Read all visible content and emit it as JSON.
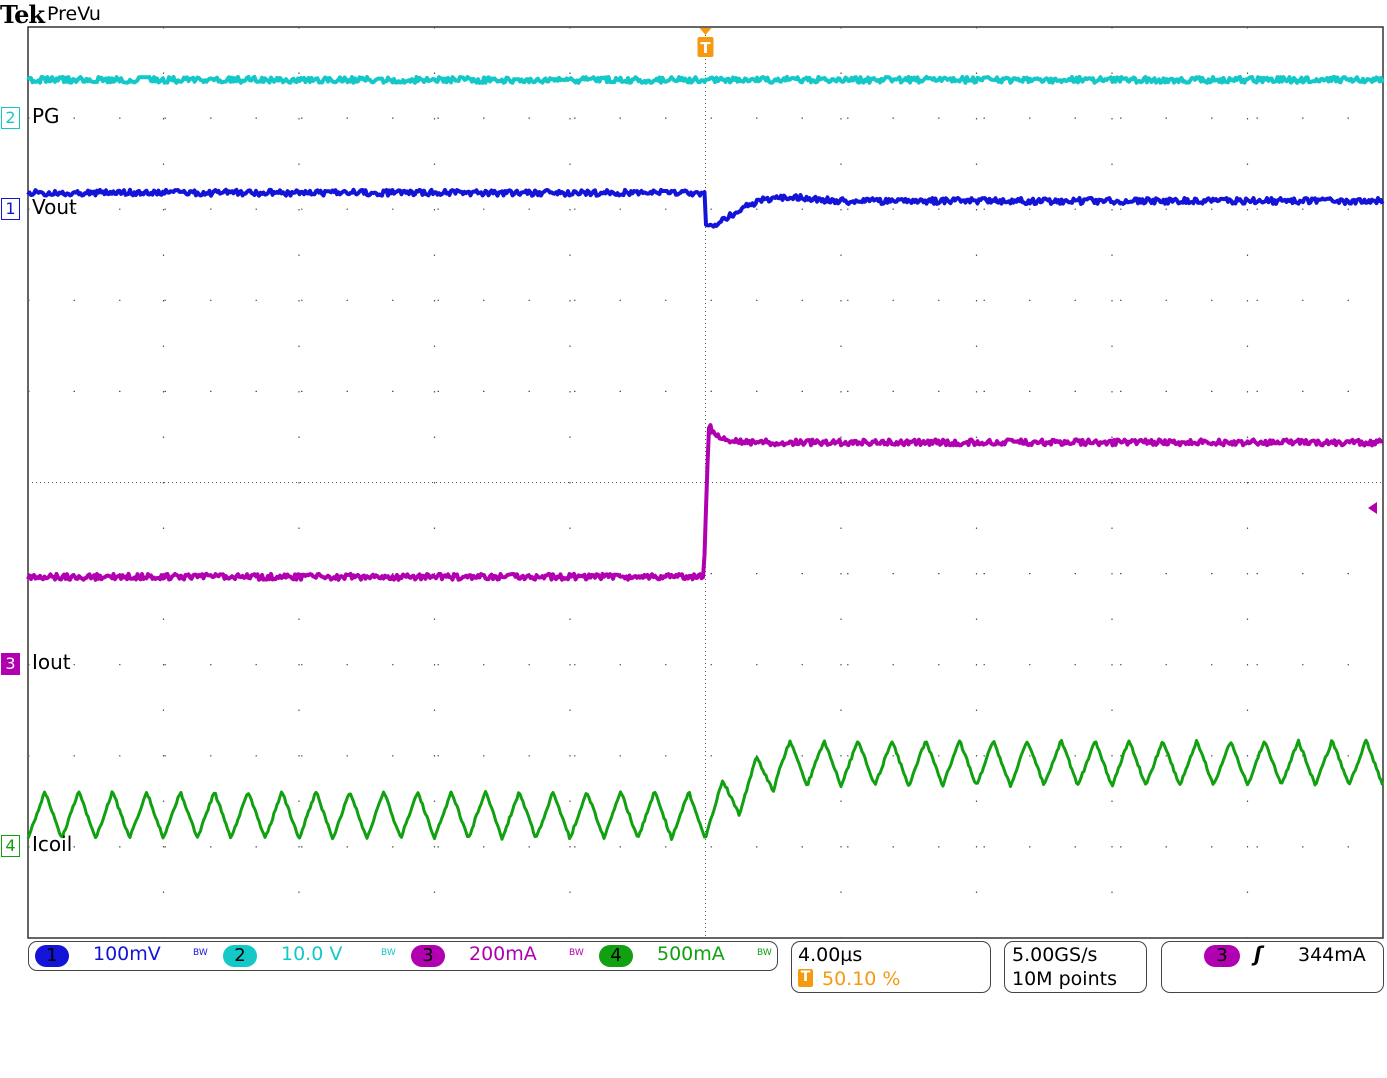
{
  "header": {
    "brand": "Tek",
    "mode": "PreVu"
  },
  "colors": {
    "ch1": "#1414d8",
    "ch2": "#14c8c8",
    "ch3": "#b000b0",
    "ch4": "#10a010",
    "trigger": "#f59a10",
    "grid": "#555555"
  },
  "channel_labels": [
    {
      "num": "2",
      "label": "PG"
    },
    {
      "num": "1",
      "label": "Vout"
    },
    {
      "num": "3",
      "label": "Iout"
    },
    {
      "num": "4",
      "label": "Icoil"
    }
  ],
  "status": {
    "channels": [
      {
        "num": "1",
        "scale": "100mV",
        "bw": "BW"
      },
      {
        "num": "2",
        "scale": "10.0 V",
        "bw": "BW"
      },
      {
        "num": "3",
        "scale": "200mA",
        "bw": "BW"
      },
      {
        "num": "4",
        "scale": "500mA",
        "bw": "BW"
      }
    ],
    "timebase": "4.00µs",
    "trigger_position": "50.10 %",
    "trigger_icon": "T",
    "sample_rate": "5.00GS/s",
    "record_length": "10M points",
    "trigger_source": "3",
    "trigger_slope": "rising-edge-icon",
    "trigger_level": "344mA"
  },
  "chart_data": {
    "type": "line",
    "x_unit": "µs",
    "xlim": [
      -20,
      20
    ],
    "x_divisions": 10,
    "y_divisions": 10,
    "grid": true,
    "trigger_time": 0,
    "series": [
      {
        "name": "PG",
        "channel": "2",
        "scale_per_div": "10.0 V",
        "marker_div": 4.0,
        "before": 4.2,
        "after": 4.2,
        "unit": "V"
      },
      {
        "name": "Vout",
        "channel": "1",
        "scale_per_div": "100mV",
        "marker_div": 3.0,
        "before": 18,
        "dip": -18,
        "dip_time": 0.2,
        "after": 9,
        "unit": "mV"
      },
      {
        "name": "Iout",
        "channel": "3",
        "scale_per_div": "200mA",
        "marker_div": -2.0,
        "before": 193,
        "overshoot": 525,
        "after": 488,
        "unit": "mA"
      },
      {
        "name": "Icoil",
        "channel": "4",
        "scale_per_div": "500mA",
        "marker_div": -4.0,
        "ripple_period": 1.0,
        "before_min": 45,
        "before_max": 305,
        "after_min": 335,
        "after_max": 585,
        "unit": "mA"
      }
    ]
  }
}
